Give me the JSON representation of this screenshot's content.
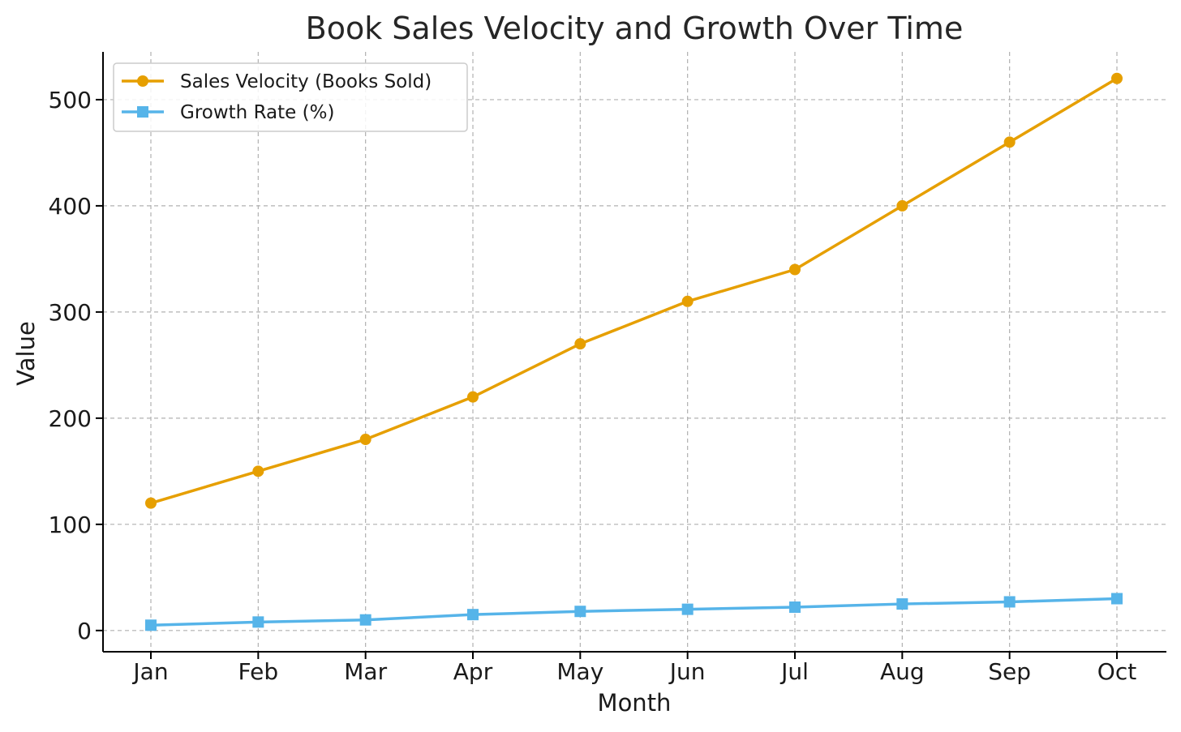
{
  "chart_data": {
    "type": "line",
    "title": "Book Sales Velocity and Growth Over Time",
    "xlabel": "Month",
    "ylabel": "Value",
    "categories": [
      "Jan",
      "Feb",
      "Mar",
      "Apr",
      "May",
      "Jun",
      "Jul",
      "Aug",
      "Sep",
      "Oct"
    ],
    "ylim": [
      -20,
      545
    ],
    "yticks": [
      0,
      100,
      200,
      300,
      400,
      500
    ],
    "grid": true,
    "legend_position": "top-left",
    "series": [
      {
        "name": "Sales Velocity (Books Sold)",
        "color": "#E69F00",
        "marker": "circle",
        "values": [
          120,
          150,
          180,
          220,
          270,
          310,
          340,
          400,
          460,
          520
        ]
      },
      {
        "name": "Growth Rate (%)",
        "color": "#56B4E9",
        "marker": "square",
        "values": [
          5,
          8,
          10,
          15,
          18,
          20,
          22,
          25,
          27,
          30
        ]
      }
    ]
  }
}
